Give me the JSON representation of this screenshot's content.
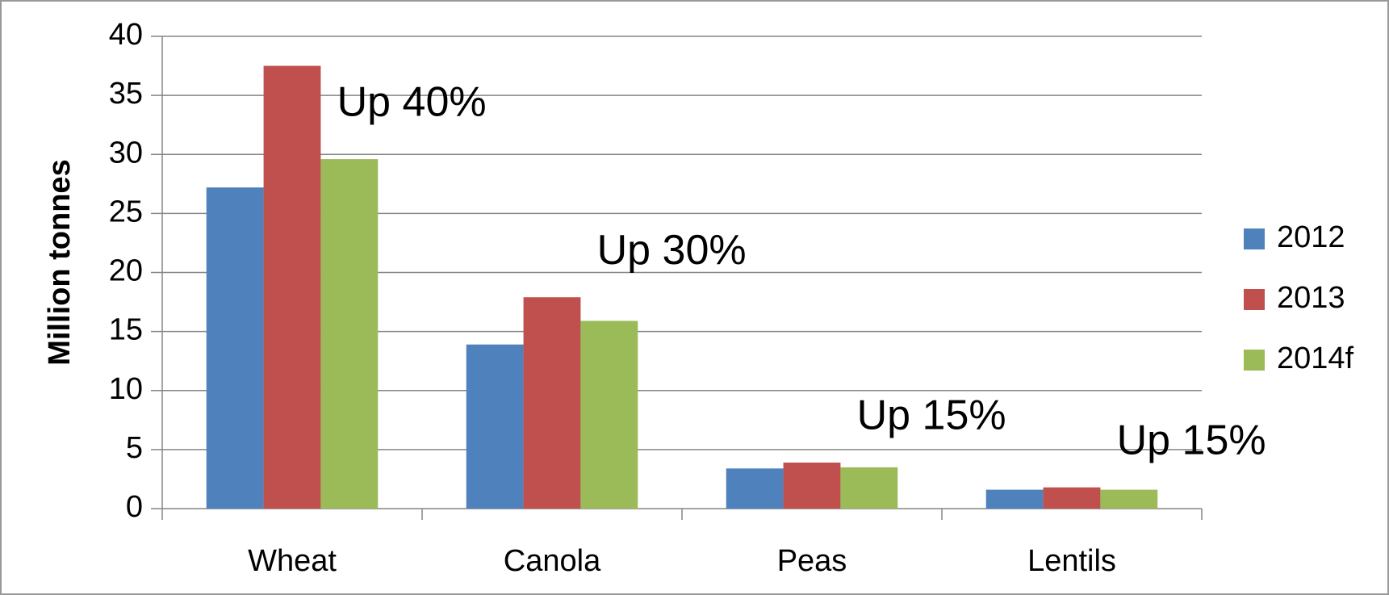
{
  "chart_data": {
    "type": "bar",
    "y_axis_label": "Million tonnes",
    "categories": [
      "Wheat",
      "Canola",
      "Peas",
      "Lentils"
    ],
    "series": [
      {
        "name": "2012",
        "color": "#4f81bd",
        "values": [
          27.2,
          13.9,
          3.4,
          1.6
        ]
      },
      {
        "name": "2013",
        "color": "#c0504d",
        "values": [
          37.5,
          17.9,
          3.9,
          1.8
        ]
      },
      {
        "name": "2014f",
        "color": "#9bbb59",
        "values": [
          29.6,
          15.9,
          3.5,
          1.6
        ]
      }
    ],
    "annotations": [
      "Up 40%",
      "Up 30%",
      "Up 15%",
      "Up 15%"
    ],
    "ylim": [
      0,
      40
    ],
    "yticks": [
      0,
      5,
      10,
      15,
      20,
      25,
      30,
      35,
      40
    ],
    "grid": true,
    "legend": "right"
  }
}
